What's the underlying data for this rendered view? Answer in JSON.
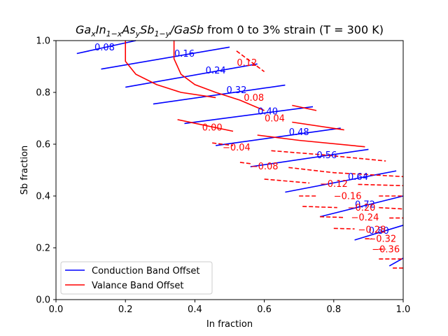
{
  "chart_data": {
    "type": "contour",
    "title": "Ga_xIn_{1-x}As_ySb_{1-y}/GaSb from 0 to 3% strain (T = 300 K)",
    "xlabel": "In fraction",
    "ylabel": "Sb fraction",
    "xlim": [
      0.0,
      1.0
    ],
    "ylim": [
      0.0,
      1.0
    ],
    "xticks": [
      "0.0",
      "0.2",
      "0.4",
      "0.6",
      "0.8",
      "1.0"
    ],
    "yticks": [
      "0.0",
      "0.2",
      "0.4",
      "0.6",
      "0.8",
      "1.0"
    ],
    "grid": false,
    "legend_position": "lower-left",
    "series": [
      {
        "name": "Conduction Band Offset",
        "color": "#0000ff",
        "style": "solid",
        "levels": [
          {
            "level": 0.08,
            "label": "0.08",
            "points": [
              [
                0.06,
                0.95
              ],
              [
                0.23,
                1.0
              ]
            ],
            "label_at": [
              0.14,
              0.975
            ]
          },
          {
            "level": 0.16,
            "label": "0.16",
            "points": [
              [
                0.13,
                0.89
              ],
              [
                0.5,
                0.975
              ]
            ],
            "label_at": [
              0.37,
              0.95
            ]
          },
          {
            "level": 0.24,
            "label": "0.24",
            "points": [
              [
                0.2,
                0.82
              ],
              [
                0.58,
                0.91
              ]
            ],
            "label_at": [
              0.46,
              0.885
            ]
          },
          {
            "level": 0.32,
            "label": "0.32",
            "points": [
              [
                0.28,
                0.755
              ],
              [
                0.66,
                0.828
              ]
            ],
            "label_at": [
              0.52,
              0.81
            ]
          },
          {
            "level": 0.4,
            "label": "0.40",
            "points": [
              [
                0.37,
                0.68
              ],
              [
                0.74,
                0.745
              ]
            ],
            "label_at": [
              0.61,
              0.727
            ]
          },
          {
            "level": 0.48,
            "label": "0.48",
            "points": [
              [
                0.46,
                0.595
              ],
              [
                0.82,
                0.662
              ]
            ],
            "label_at": [
              0.7,
              0.647
            ]
          },
          {
            "level": 0.56,
            "label": "0.56",
            "points": [
              [
                0.56,
                0.513
              ],
              [
                0.9,
                0.58
              ]
            ],
            "label_at": [
              0.78,
              0.558
            ]
          },
          {
            "level": 0.64,
            "label": "0.64",
            "points": [
              [
                0.66,
                0.415
              ],
              [
                0.98,
                0.497
              ]
            ],
            "label_at": [
              0.87,
              0.475
            ]
          },
          {
            "level": 0.72,
            "label": "0.72",
            "points": [
              [
                0.76,
                0.32
              ],
              [
                1.0,
                0.4
              ]
            ],
            "label_at": [
              0.89,
              0.368
            ]
          },
          {
            "level": 0.8,
            "label": "0.80",
            "points": [
              [
                0.86,
                0.23
              ],
              [
                1.0,
                0.287
              ]
            ],
            "label_at": [
              0.93,
              0.266
            ]
          },
          {
            "level": 0.88,
            "label": "",
            "points": [
              [
                0.96,
                0.13
              ],
              [
                1.0,
                0.16
              ]
            ],
            "label_at": null
          }
        ]
      },
      {
        "name": "Valance Band Offset",
        "color": "#ff0000",
        "style": "mixed",
        "levels": [
          {
            "level": 0.12,
            "label": "0.12",
            "style": "dashed",
            "points": [
              [
                0.52,
                0.96
              ],
              [
                0.6,
                0.88
              ]
            ],
            "label_at": [
              0.55,
              0.915
            ]
          },
          {
            "level": 0.08,
            "label": "0.08",
            "style": "solid",
            "points": [
              [
                0.2,
                1.0
              ],
              [
                0.2,
                0.92
              ],
              [
                0.23,
                0.87
              ],
              [
                0.29,
                0.83
              ],
              [
                0.36,
                0.8
              ],
              [
                0.46,
                0.78
              ]
            ],
            "label_at": [
              0.57,
              0.78
            ]
          },
          {
            "level": 0.08,
            "label": "",
            "style": "solid",
            "points": [
              [
                0.68,
                0.75
              ],
              [
                0.75,
                0.73
              ]
            ],
            "label_at": null
          },
          {
            "level": 0.04,
            "label": "0.04",
            "style": "solid",
            "points": [
              [
                0.34,
                1.0
              ],
              [
                0.34,
                0.93
              ],
              [
                0.36,
                0.87
              ],
              [
                0.4,
                0.83
              ],
              [
                0.46,
                0.8
              ],
              [
                0.53,
                0.77
              ],
              [
                0.6,
                0.73
              ]
            ],
            "label_at": [
              0.63,
              0.7
            ]
          },
          {
            "level": 0.04,
            "label": "",
            "style": "solid",
            "points": [
              [
                0.68,
                0.685
              ],
              [
                0.83,
                0.655
              ]
            ],
            "label_at": null
          },
          {
            "level": 0.0,
            "label": "0.00",
            "style": "solid",
            "points": [
              [
                0.35,
                0.695
              ],
              [
                0.42,
                0.675
              ],
              [
                0.51,
                0.65
              ]
            ],
            "label_at": [
              0.45,
              0.665
            ]
          },
          {
            "level": 0.0,
            "label": "",
            "style": "solid",
            "points": [
              [
                0.58,
                0.635
              ],
              [
                0.7,
                0.615
              ],
              [
                0.89,
                0.59
              ]
            ],
            "label_at": null
          },
          {
            "level": -0.04,
            "label": "−0.04",
            "style": "dashed",
            "points": [
              [
                0.45,
                0.605
              ],
              [
                0.51,
                0.595
              ]
            ],
            "label_at": [
              0.52,
              0.588
            ]
          },
          {
            "level": -0.04,
            "label": "",
            "style": "dashed",
            "points": [
              [
                0.62,
                0.575
              ],
              [
                0.76,
                0.56
              ],
              [
                0.95,
                0.535
              ]
            ],
            "label_at": null
          },
          {
            "level": -0.08,
            "label": "−0.08",
            "style": "dashed",
            "points": [
              [
                0.53,
                0.53
              ],
              [
                0.56,
                0.525
              ]
            ],
            "label_at": [
              0.6,
              0.515
            ]
          },
          {
            "level": -0.08,
            "label": "",
            "style": "dashed",
            "points": [
              [
                0.67,
                0.51
              ],
              [
                0.8,
                0.49
              ],
              [
                1.0,
                0.475
              ]
            ],
            "label_at": null
          },
          {
            "level": -0.12,
            "label": "−0.12",
            "style": "dashed",
            "points": [
              [
                0.6,
                0.465
              ],
              [
                0.73,
                0.45
              ]
            ],
            "label_at": [
              0.8,
              0.447
            ]
          },
          {
            "level": -0.12,
            "label": "",
            "style": "dashed",
            "points": [
              [
                0.87,
                0.445
              ],
              [
                1.0,
                0.44
              ]
            ],
            "label_at": null
          },
          {
            "level": -0.16,
            "label": "−0.16",
            "style": "dashed",
            "points": [
              [
                0.7,
                0.4
              ],
              [
                0.75,
                0.4
              ]
            ],
            "label_at": [
              0.84,
              0.4
            ]
          },
          {
            "level": -0.16,
            "label": "",
            "style": "dashed",
            "points": [
              [
                0.93,
                0.4
              ],
              [
                1.0,
                0.4
              ]
            ],
            "label_at": null
          },
          {
            "level": -0.2,
            "label": "−0.20",
            "style": "dashed",
            "points": [
              [
                0.71,
                0.36
              ],
              [
                0.81,
                0.355
              ]
            ],
            "label_at": [
              0.88,
              0.355
            ]
          },
          {
            "level": -0.2,
            "label": "",
            "style": "dashed",
            "points": [
              [
                0.93,
                0.355
              ],
              [
                1.0,
                0.35
              ]
            ],
            "label_at": null
          },
          {
            "level": -0.24,
            "label": "−0.24",
            "style": "dashed",
            "points": [
              [
                0.76,
                0.32
              ],
              [
                0.83,
                0.317
              ]
            ],
            "label_at": [
              0.89,
              0.317
            ]
          },
          {
            "level": -0.24,
            "label": "",
            "style": "dashed",
            "points": [
              [
                0.96,
                0.315
              ],
              [
                1.0,
                0.315
              ]
            ],
            "label_at": null
          },
          {
            "level": -0.28,
            "label": "−0.28",
            "style": "dashed",
            "points": [
              [
                0.8,
                0.275
              ],
              [
                0.86,
                0.273
              ]
            ],
            "label_at": [
              0.91,
              0.27
            ]
          },
          {
            "level": -0.32,
            "label": "−0.32",
            "style": "dashed",
            "points": [
              [
                0.89,
                0.235
              ],
              [
                0.91,
                0.235
              ]
            ],
            "label_at": [
              0.94,
              0.235
            ]
          },
          {
            "level": -0.36,
            "label": "−0.36",
            "style": "dashed",
            "points": [
              [
                0.93,
                0.195
              ],
              [
                0.95,
                0.195
              ]
            ],
            "label_at": [
              0.95,
              0.195
            ]
          },
          {
            "level": -0.4,
            "label": "",
            "style": "dashed",
            "points": [
              [
                0.93,
                0.157
              ],
              [
                1.0,
                0.157
              ]
            ],
            "label_at": null
          },
          {
            "level": -0.44,
            "label": "",
            "style": "dashed",
            "points": [
              [
                0.97,
                0.122
              ],
              [
                1.0,
                0.122
              ]
            ],
            "label_at": null
          }
        ]
      }
    ]
  }
}
